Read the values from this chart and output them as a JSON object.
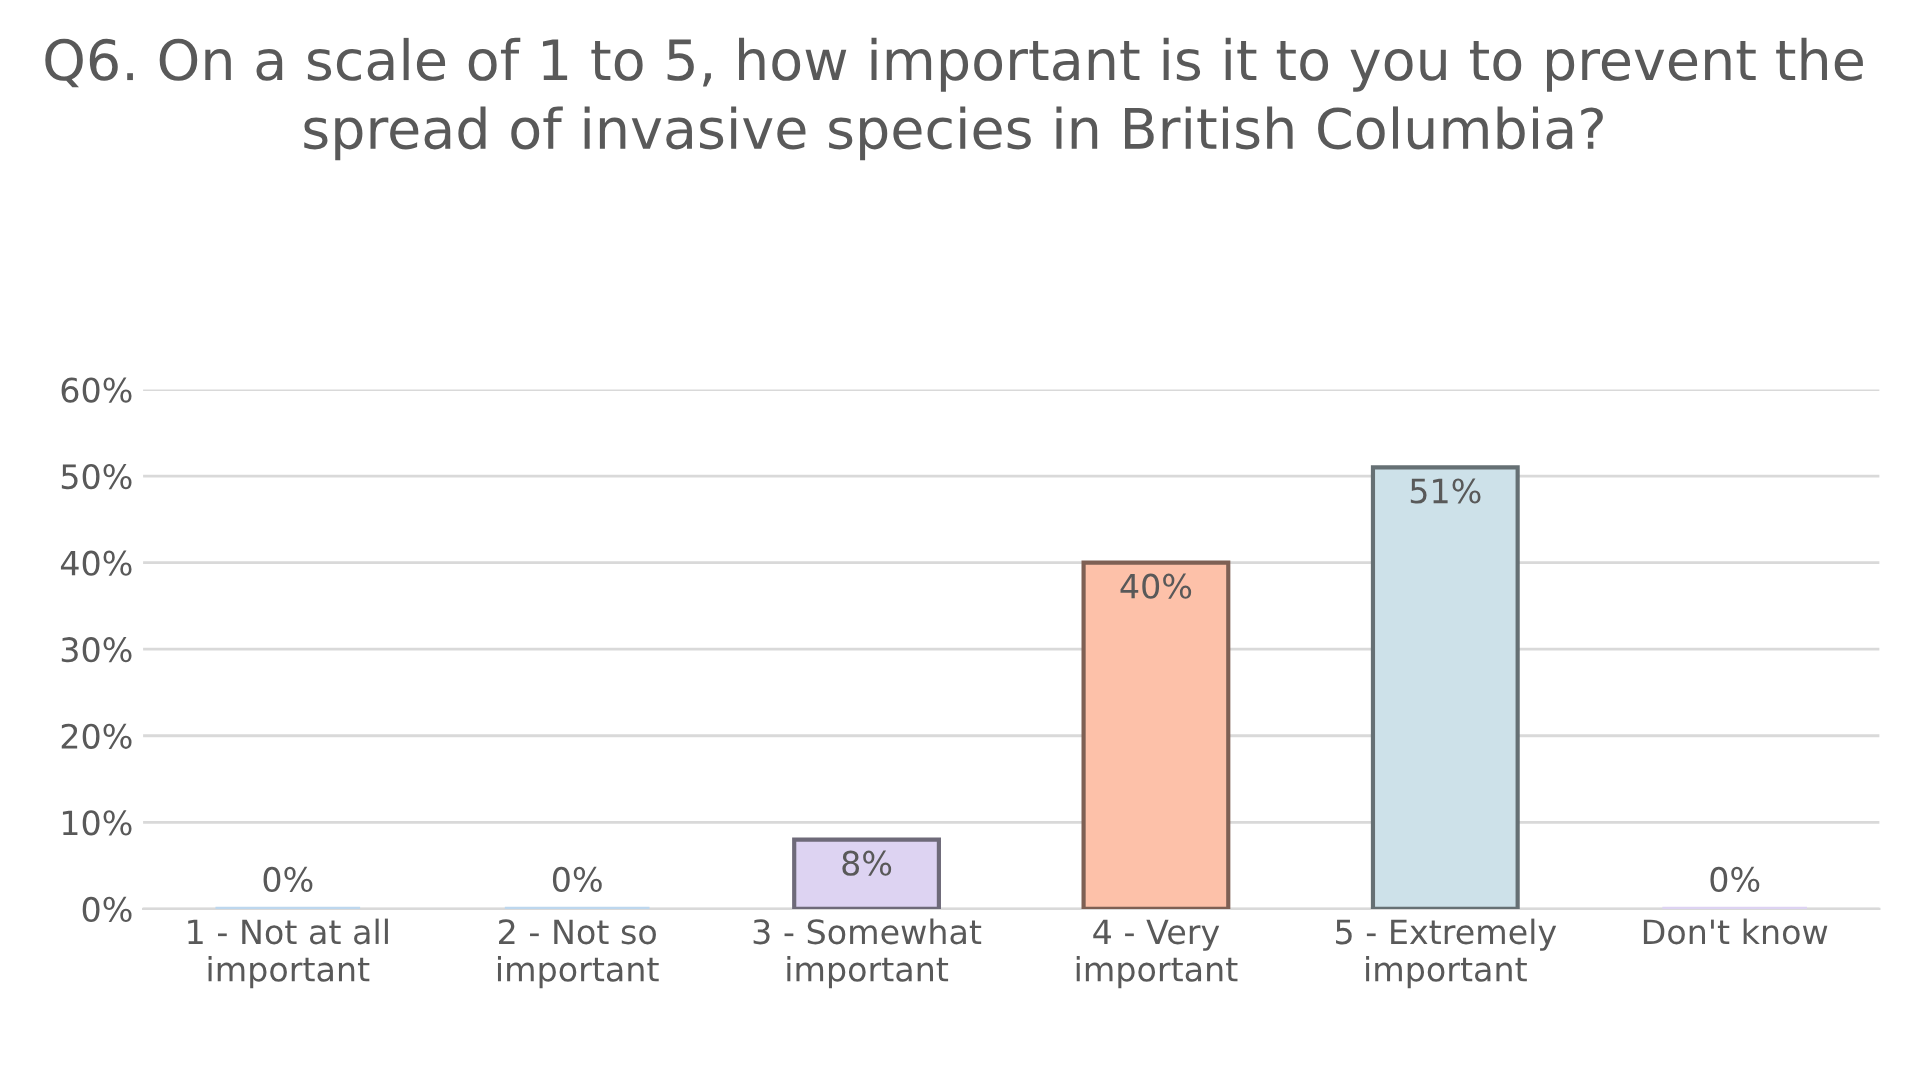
{
  "chart_data": {
    "type": "bar",
    "title": "Q6. On a scale of 1 to 5, how important is it to you to prevent the spread of invasive species in British Columbia?",
    "categories": [
      "1 - Not at all\nimportant",
      "2 - Not so\nimportant",
      "3 - Somewhat\nimportant",
      "4 - Very\nimportant",
      "5 - Extremely\nimportant",
      "Don't know"
    ],
    "values": [
      0,
      0,
      8,
      40,
      51,
      0
    ],
    "value_labels": [
      "0%",
      "0%",
      "8%",
      "40%",
      "51%",
      "0%"
    ],
    "colors": [
      "#bdd7ee",
      "#bdd7ee",
      "#ddd3f2",
      "#fdc1a9",
      "#cde1e9",
      "#ddd3f2"
    ],
    "ylim": [
      0,
      60
    ],
    "yticks": [
      {
        "value": 0,
        "label": "0%"
      },
      {
        "value": 10,
        "label": "10%"
      },
      {
        "value": 20,
        "label": "20%"
      },
      {
        "value": 30,
        "label": "30%"
      },
      {
        "value": 40,
        "label": "40%"
      },
      {
        "value": 50,
        "label": "50%"
      },
      {
        "value": 60,
        "label": "60%"
      }
    ],
    "grid": "y"
  }
}
